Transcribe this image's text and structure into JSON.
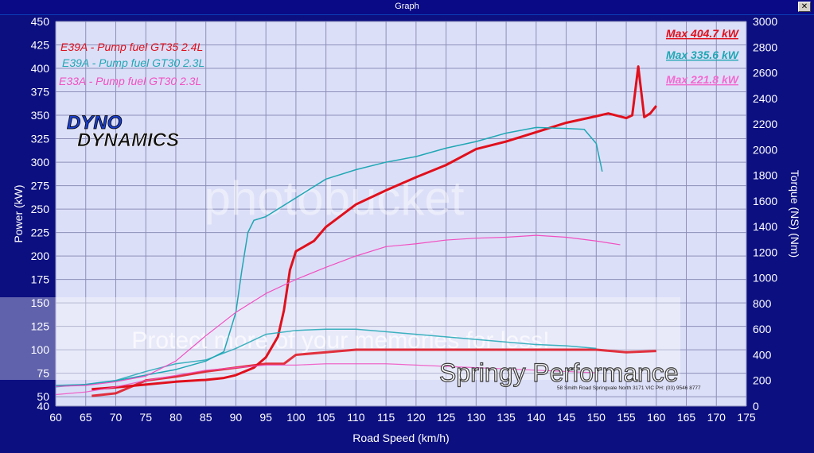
{
  "window": {
    "title": "Graph"
  },
  "chart_data": {
    "type": "line",
    "xlabel": "Road Speed (km/h)",
    "ylabel": "Power (kW)",
    "y2label": "Torque (NS) (Nm)",
    "xlim": [
      60,
      175
    ],
    "ylim": [
      40,
      450
    ],
    "y2lim": [
      0,
      3000
    ],
    "xticks": [
      60,
      65,
      70,
      75,
      80,
      85,
      90,
      95,
      100,
      105,
      110,
      115,
      120,
      125,
      130,
      135,
      140,
      145,
      150,
      155,
      160,
      165,
      170,
      175
    ],
    "yticks": [
      40,
      50,
      75,
      100,
      125,
      150,
      175,
      200,
      225,
      250,
      275,
      300,
      325,
      350,
      375,
      400,
      425,
      450
    ],
    "y2ticks": [
      0,
      200,
      400,
      600,
      800,
      1000,
      1200,
      1400,
      1600,
      1800,
      2000,
      2200,
      2400,
      2600,
      2800,
      3000
    ],
    "grid": true,
    "legend_placement": "top-left",
    "series": [
      {
        "name": "E39A - Pump fuel GT35 2.4L",
        "color": "#e0101c",
        "max_label": "Max 404.7 kW",
        "power": {
          "x": [
            66,
            70,
            75,
            80,
            85,
            88,
            90,
            93,
            95,
            97,
            98,
            99,
            100,
            103,
            105,
            110,
            115,
            120,
            125,
            130,
            135,
            140,
            145,
            150,
            152,
            155,
            156,
            157,
            158,
            159,
            160
          ],
          "y": [
            58,
            60,
            63,
            66,
            68,
            70,
            73,
            81,
            92,
            114,
            142,
            185,
            205,
            216,
            231,
            255,
            270,
            284,
            297,
            314,
            322,
            332,
            342,
            349,
            352,
            347,
            350,
            402,
            348,
            352,
            360
          ]
        },
        "torque": {
          "x": [
            66,
            70,
            75,
            80,
            85,
            90,
            95,
            98,
            100,
            105,
            110,
            115,
            120,
            125,
            130,
            135,
            140,
            145,
            150,
            155,
            160
          ],
          "y": [
            80,
            100,
            200,
            230,
            270,
            300,
            330,
            330,
            400,
            420,
            440,
            440,
            440,
            440,
            440,
            440,
            440,
            440,
            440,
            420,
            430
          ]
        }
      },
      {
        "name": "E39A - Pump fuel GT30 2.3L",
        "color": "#1fa7b4",
        "max_label": "Max 335.6 kW",
        "power": {
          "x": [
            60,
            65,
            70,
            75,
            80,
            85,
            88,
            90,
            91,
            92,
            93,
            95,
            100,
            105,
            110,
            115,
            120,
            125,
            130,
            135,
            140,
            145,
            148,
            150,
            151
          ],
          "y": [
            62,
            63,
            67,
            73,
            79,
            88,
            98,
            140,
            185,
            225,
            238,
            242,
            262,
            282,
            292,
            300,
            306,
            315,
            322,
            331,
            337,
            336,
            335,
            320,
            290
          ]
        },
        "torque": {
          "x": [
            60,
            65,
            70,
            75,
            80,
            85,
            90,
            95,
            100,
            105,
            110,
            115,
            120,
            125,
            130,
            135,
            140,
            145,
            150
          ],
          "y": [
            150,
            170,
            200,
            270,
            330,
            360,
            450,
            560,
            590,
            600,
            600,
            580,
            560,
            540,
            520,
            500,
            480,
            470,
            450
          ]
        }
      },
      {
        "name": "E33A - Pump fuel GT30 2.3L",
        "color": "#f050c0",
        "max_label": "Max 221.8 kW",
        "power": {
          "x": [
            60,
            65,
            70,
            75,
            80,
            85,
            90,
            95,
            100,
            105,
            110,
            115,
            120,
            125,
            130,
            135,
            140,
            145,
            150,
            152,
            154
          ],
          "y": [
            61,
            62,
            66,
            72,
            88,
            115,
            140,
            160,
            175,
            188,
            200,
            210,
            213,
            217,
            219,
            220,
            222,
            220,
            216,
            214,
            212
          ]
        },
        "torque": {
          "x": [
            60,
            65,
            70,
            75,
            80,
            85,
            90,
            95,
            100,
            105,
            110,
            115,
            120,
            125,
            130,
            135,
            140,
            145,
            150
          ],
          "y": [
            90,
            110,
            150,
            200,
            240,
            280,
            300,
            320,
            320,
            330,
            330,
            330,
            320,
            310,
            300,
            290,
            280,
            270,
            260
          ]
        }
      }
    ]
  },
  "logo": {
    "line1": "DYNO",
    "line2": "DYNAMICS"
  },
  "watermark": {
    "main": "photobucket",
    "banner": "Protect more of your memories for less!"
  },
  "brand": {
    "name": "Springy Performance",
    "address": "58 Smith Road Springvale North 3171 VIC  PH: (03) 9546 8777"
  }
}
